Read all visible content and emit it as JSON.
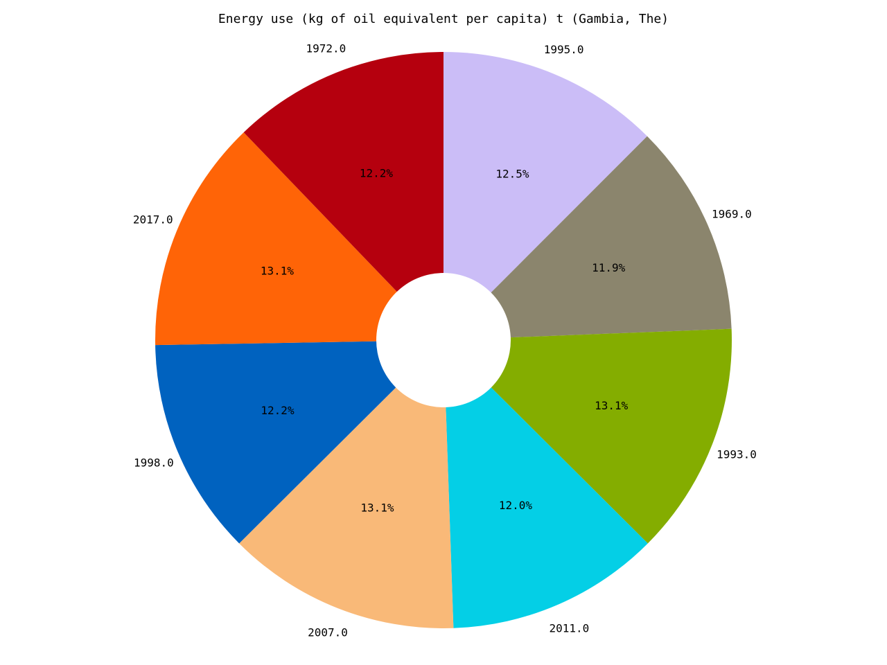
{
  "chart_data": {
    "type": "pie",
    "title": "Energy use (kg of oil equivalent per capita) t (Gambia, The)",
    "donut": true,
    "start": "top",
    "direction": "clockwise",
    "slices": [
      {
        "label": "1995.0",
        "percent": 12.5,
        "display": "12.5%",
        "color": "#cbbdf7"
      },
      {
        "label": "1969.0",
        "percent": 11.9,
        "display": "11.9%",
        "color": "#8b856d"
      },
      {
        "label": "1993.0",
        "percent": 13.1,
        "display": "13.1%",
        "color": "#84ad00"
      },
      {
        "label": "2011.0",
        "percent": 12.0,
        "display": "12.0%",
        "color": "#04cfe6"
      },
      {
        "label": "2007.0",
        "percent": 13.1,
        "display": "13.1%",
        "color": "#f9b978"
      },
      {
        "label": "1998.0",
        "percent": 12.2,
        "display": "12.2%",
        "color": "#0062bf"
      },
      {
        "label": "2017.0",
        "percent": 13.1,
        "display": "13.1%",
        "color": "#ff6407"
      },
      {
        "label": "1972.0",
        "percent": 12.2,
        "display": "12.2%",
        "color": "#b5000e"
      }
    ]
  }
}
